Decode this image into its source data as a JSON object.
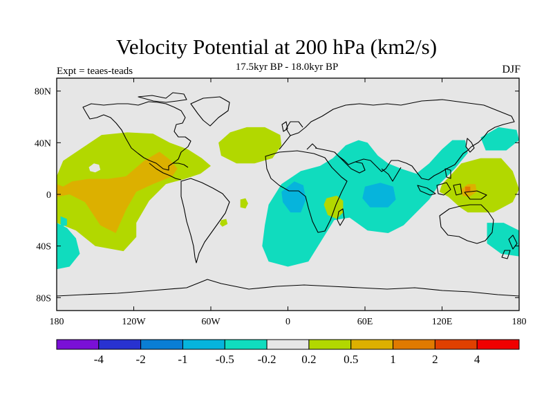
{
  "title": "Velocity Potential at 200 hPa (km2/s)",
  "subtitle": "17.5kyr BP - 18.0kyr BP",
  "left_label": "Expt = teaes-teads",
  "right_label": "DJF",
  "map": {
    "projection": "cylindrical-equidistant",
    "lon_range": [
      -180,
      180
    ],
    "lat_range": [
      -90,
      90
    ],
    "lat_ticks": [
      {
        "value": 80,
        "label": "80N"
      },
      {
        "value": 40,
        "label": "40N"
      },
      {
        "value": 0,
        "label": "0"
      },
      {
        "value": -40,
        "label": "40S"
      },
      {
        "value": -80,
        "label": "80S"
      }
    ],
    "lon_ticks": [
      {
        "value": -180,
        "label": "180"
      },
      {
        "value": -120,
        "label": "120W"
      },
      {
        "value": -60,
        "label": "60W"
      },
      {
        "value": 0,
        "label": "0"
      },
      {
        "value": 60,
        "label": "60E"
      },
      {
        "value": 120,
        "label": "120E"
      },
      {
        "value": 180,
        "label": "180"
      }
    ]
  },
  "colorbar": {
    "colors": [
      "#7a10d6",
      "#2832d0",
      "#0a7ed4",
      "#06b4dc",
      "#10dcbe",
      "#e6e6e6",
      "#b2d800",
      "#dcb000",
      "#e07a00",
      "#e04000",
      "#f00000"
    ],
    "labels": [
      "-4",
      "-2",
      "-1",
      "-0.5",
      "-0.2",
      "0.2",
      "0.5",
      "1",
      "2",
      "4"
    ]
  },
  "chart_data": {
    "type": "heatmap",
    "title": "Velocity Potential at 200 hPa (km2/s)",
    "subtitle": "17.5kyr BP - 18.0kyr BP",
    "variable": "velocity potential anomaly, 200 hPa",
    "units": "km2/s",
    "experiment": "teaes-teads",
    "season": "DJF",
    "levels": [
      -4,
      -2,
      -1,
      -0.5,
      -0.2,
      0.2,
      0.5,
      1,
      2,
      4
    ],
    "background_color": "#e6e6e6",
    "regions": [
      {
        "name": "eastern-pacific-positive",
        "color": "#b2d800",
        "points": [
          [
            -180,
            14
          ],
          [
            -175,
            26
          ],
          [
            -160,
            36
          ],
          [
            -145,
            46
          ],
          [
            -125,
            48
          ],
          [
            -105,
            47
          ],
          [
            -92,
            40
          ],
          [
            -78,
            35
          ],
          [
            -67,
            28
          ],
          [
            -60,
            22
          ],
          [
            -68,
            16
          ],
          [
            -80,
            12
          ],
          [
            -95,
            8
          ],
          [
            -108,
            -5
          ],
          [
            -118,
            -22
          ],
          [
            -118,
            -33
          ],
          [
            -128,
            -44
          ],
          [
            -150,
            -40
          ],
          [
            -165,
            -28
          ],
          [
            -180,
            -22
          ]
        ]
      },
      {
        "name": "central-america-pacific-peak",
        "color": "#dcb000",
        "points": [
          [
            -180,
            8
          ],
          [
            -175,
            6
          ],
          [
            -168,
            10
          ],
          [
            -155,
            12
          ],
          [
            -140,
            12
          ],
          [
            -126,
            14
          ],
          [
            -112,
            26
          ],
          [
            -100,
            33
          ],
          [
            -92,
            27
          ],
          [
            -86,
            20
          ],
          [
            -90,
            14
          ],
          [
            -105,
            8
          ],
          [
            -118,
            2
          ],
          [
            -126,
            -12
          ],
          [
            -134,
            -30
          ],
          [
            -146,
            -24
          ],
          [
            -158,
            -6
          ],
          [
            -170,
            0
          ],
          [
            -180,
            -2
          ]
        ]
      },
      {
        "name": "pacific-hole",
        "color": "#e6e6e6",
        "points": [
          [
            -155,
            21
          ],
          [
            -151,
            24
          ],
          [
            -147,
            23
          ],
          [
            -146,
            19
          ],
          [
            -150,
            17
          ],
          [
            -154,
            18
          ]
        ]
      },
      {
        "name": "south-pacific-teal-west",
        "color": "#10dcbe",
        "points": [
          [
            -180,
            -22
          ],
          [
            -172,
            -26
          ],
          [
            -165,
            -34
          ],
          [
            -162,
            -46
          ],
          [
            -170,
            -56
          ],
          [
            -180,
            -58
          ]
        ]
      },
      {
        "name": "south-pacific-teal-small",
        "color": "#10dcbe",
        "points": [
          [
            -177,
            -17
          ],
          [
            -172,
            -19
          ],
          [
            -172,
            -24
          ],
          [
            -177,
            -25
          ]
        ]
      },
      {
        "name": "north-atlantic-positive",
        "color": "#b2d800",
        "points": [
          [
            -54,
            40
          ],
          [
            -45,
            48
          ],
          [
            -32,
            52
          ],
          [
            -18,
            52
          ],
          [
            -6,
            46
          ],
          [
            -5,
            38
          ],
          [
            -12,
            28
          ],
          [
            -26,
            24
          ],
          [
            -40,
            24
          ],
          [
            -52,
            30
          ]
        ]
      },
      {
        "name": "south-atlantic-small-positive",
        "color": "#b2d800",
        "points": [
          [
            -37,
            -4
          ],
          [
            -33,
            -3
          ],
          [
            -31,
            -7
          ],
          [
            -33,
            -11
          ],
          [
            -37,
            -10
          ]
        ]
      },
      {
        "name": "south-america-small-positive",
        "color": "#b2d800",
        "points": [
          [
            -52,
            -20
          ],
          [
            -48,
            -19
          ],
          [
            -47,
            -23
          ],
          [
            -51,
            -25
          ],
          [
            -53,
            -23
          ]
        ]
      },
      {
        "name": "africa-indian-negative",
        "color": "#10dcbe",
        "points": [
          [
            -15,
            -8
          ],
          [
            -5,
            8
          ],
          [
            10,
            18
          ],
          [
            25,
            22
          ],
          [
            35,
            28
          ],
          [
            45,
            38
          ],
          [
            55,
            42
          ],
          [
            62,
            40
          ],
          [
            70,
            30
          ],
          [
            78,
            24
          ],
          [
            88,
            20
          ],
          [
            100,
            16
          ],
          [
            110,
            24
          ],
          [
            120,
            35
          ],
          [
            128,
            42
          ],
          [
            138,
            42
          ],
          [
            140,
            32
          ],
          [
            130,
            20
          ],
          [
            118,
            8
          ],
          [
            110,
            -4
          ],
          [
            100,
            -14
          ],
          [
            90,
            -24
          ],
          [
            78,
            -30
          ],
          [
            62,
            -28
          ],
          [
            48,
            -18
          ],
          [
            36,
            -20
          ],
          [
            26,
            -36
          ],
          [
            16,
            -52
          ],
          [
            0,
            -56
          ],
          [
            -15,
            -52
          ],
          [
            -20,
            -40
          ],
          [
            -18,
            -24
          ]
        ]
      },
      {
        "name": "congo-neg-peak",
        "color": "#06b4dc",
        "points": [
          [
            -5,
            2
          ],
          [
            5,
            10
          ],
          [
            12,
            7
          ],
          [
            14,
            -4
          ],
          [
            10,
            -14
          ],
          [
            2,
            -14
          ],
          [
            -4,
            -6
          ]
        ]
      },
      {
        "name": "indian-ocean-neg-peak",
        "color": "#06b4dc",
        "points": [
          [
            60,
            6
          ],
          [
            72,
            9
          ],
          [
            82,
            6
          ],
          [
            84,
            -4
          ],
          [
            78,
            -10
          ],
          [
            64,
            -10
          ],
          [
            58,
            -3
          ]
        ]
      },
      {
        "name": "east-africa-positive",
        "color": "#b2d800",
        "points": [
          [
            30,
            -3
          ],
          [
            38,
            -1
          ],
          [
            43,
            -5
          ],
          [
            43,
            -14
          ],
          [
            38,
            -19
          ],
          [
            31,
            -16
          ],
          [
            28,
            -8
          ]
        ]
      },
      {
        "name": "japan-positive-right",
        "color": "#10dcbe",
        "points": [
          [
            150,
            44
          ],
          [
            164,
            52
          ],
          [
            178,
            50
          ],
          [
            180,
            42
          ],
          [
            170,
            34
          ],
          [
            154,
            34
          ]
        ]
      },
      {
        "name": "western-pacific-positive",
        "color": "#b2d800",
        "points": [
          [
            118,
            2
          ],
          [
            125,
            -2
          ],
          [
            134,
            -10
          ],
          [
            140,
            -14
          ],
          [
            160,
            -14
          ],
          [
            175,
            -6
          ],
          [
            180,
            4
          ],
          [
            175,
            18
          ],
          [
            166,
            28
          ],
          [
            150,
            28
          ],
          [
            135,
            24
          ],
          [
            126,
            14
          ],
          [
            120,
            8
          ]
        ]
      },
      {
        "name": "western-pacific-peak",
        "color": "#dcb000",
        "points": [
          [
            135,
            4
          ],
          [
            140,
            8
          ],
          [
            146,
            8
          ],
          [
            147,
            2
          ],
          [
            141,
            -2
          ],
          [
            136,
            -1
          ]
        ]
      },
      {
        "name": "western-pacific-max",
        "color": "#e07a00",
        "points": [
          [
            138,
            6
          ],
          [
            142,
            6
          ],
          [
            142,
            2
          ],
          [
            138,
            2
          ]
        ]
      },
      {
        "name": "tasman-teal",
        "color": "#10dcbe",
        "points": [
          [
            155,
            -22
          ],
          [
            168,
            -22
          ],
          [
            180,
            -28
          ],
          [
            180,
            -48
          ],
          [
            166,
            -46
          ],
          [
            155,
            -38
          ]
        ]
      }
    ]
  }
}
